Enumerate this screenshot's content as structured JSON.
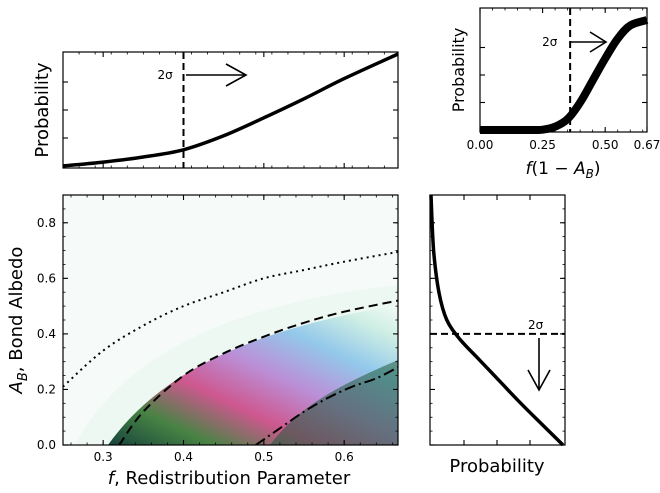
{
  "chart_data": [
    {
      "id": "top-marginal",
      "type": "line",
      "title": "",
      "xlabel": "",
      "ylabel": "Probability",
      "xlim": [
        0.25,
        0.667
      ],
      "ylim": [
        0,
        1
      ],
      "x": [
        0.25,
        0.3,
        0.35,
        0.4,
        0.45,
        0.5,
        0.55,
        0.6,
        0.667
      ],
      "y": [
        0.0,
        0.035,
        0.08,
        0.145,
        0.27,
        0.43,
        0.6,
        0.78,
        1.0
      ],
      "threshold": {
        "x": 0.4,
        "label": "2σ",
        "direction": "right"
      },
      "grid": false
    },
    {
      "id": "top-right-marginal",
      "type": "line",
      "title": "",
      "xlabel": "f(1 − A_B)",
      "ylabel": "Probability",
      "xlim": [
        0.0,
        0.667
      ],
      "ylim": [
        0,
        1
      ],
      "xticks": [
        "0.00",
        "0.25",
        "0.50",
        "0.67"
      ],
      "x": [
        0.0,
        0.2,
        0.25,
        0.3,
        0.35,
        0.4,
        0.45,
        0.5,
        0.55,
        0.6,
        0.667
      ],
      "y": [
        0.0,
        0.0,
        0.003,
        0.03,
        0.1,
        0.25,
        0.45,
        0.65,
        0.83,
        0.95,
        1.0
      ],
      "threshold": {
        "x": 0.36,
        "label": "2σ",
        "direction": "right"
      },
      "grid": false
    },
    {
      "id": "main-contour",
      "type": "heatmap",
      "title": "",
      "xlabel": "f, Redistribution Parameter",
      "ylabel": "A_B, Bond Albedo",
      "xlim": [
        0.25,
        0.667
      ],
      "ylim": [
        0.0,
        0.9
      ],
      "xticks": [
        "0.3",
        "0.4",
        "0.5",
        "0.6"
      ],
      "yticks": [
        "0.0",
        "0.2",
        "0.4",
        "0.6",
        "0.8"
      ],
      "contours": [
        {
          "name": "",
          "style": "dotted",
          "x": [
            0.25,
            0.3,
            0.35,
            0.4,
            0.45,
            0.5,
            0.55,
            0.6,
            0.667
          ],
          "y": [
            0.21,
            0.34,
            0.43,
            0.5,
            0.55,
            0.6,
            0.63,
            0.66,
            0.695
          ]
        },
        {
          "name": "",
          "style": "dashed",
          "x": [
            0.32,
            0.35,
            0.4,
            0.45,
            0.5,
            0.55,
            0.6,
            0.667
          ],
          "y": [
            0.0,
            0.12,
            0.25,
            0.33,
            0.39,
            0.44,
            0.48,
            0.52
          ]
        },
        {
          "name": "",
          "style": "dashdot",
          "x": [
            0.49,
            0.52,
            0.55,
            0.58,
            0.61,
            0.64,
            0.667
          ],
          "y": [
            0.0,
            0.06,
            0.12,
            0.17,
            0.21,
            0.24,
            0.28
          ]
        }
      ],
      "grid": false
    },
    {
      "id": "right-marginal",
      "type": "line",
      "orientation": "vertical",
      "title": "",
      "xlabel": "Probability",
      "ylabel": "",
      "xlim": [
        0,
        1
      ],
      "ylim": [
        0.0,
        0.9
      ],
      "x": [
        0.0,
        0.02,
        0.06,
        0.12,
        0.22,
        0.36,
        0.52,
        0.68,
        0.84,
        1.0
      ],
      "y": [
        0.9,
        0.7,
        0.55,
        0.45,
        0.38,
        0.31,
        0.23,
        0.15,
        0.075,
        0.0
      ],
      "threshold": {
        "y": 0.4,
        "label": "2σ",
        "direction": "down"
      },
      "grid": false
    }
  ]
}
